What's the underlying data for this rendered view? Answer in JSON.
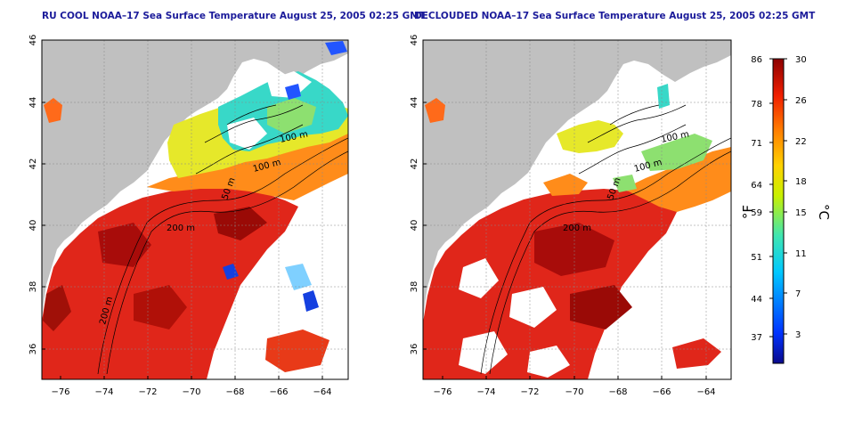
{
  "maps": [
    {
      "id": "left",
      "title": "RU COOL NOAA–17 Sea Surface Temperature August 25, 2005 02:25 GMT",
      "x_ticks": [
        "−76",
        "−74",
        "−72",
        "−70",
        "−68",
        "−66",
        "−64"
      ],
      "y_ticks": [
        "46",
        "44",
        "42",
        "40",
        "38",
        "36"
      ],
      "contour_labels": [
        "100 m",
        "100 m",
        "50 m",
        "200 m",
        "200 m"
      ]
    },
    {
      "id": "right",
      "title": "DECLOUDED NOAA–17 Sea Surface Temperature August 25, 2005 02:25 GMT",
      "x_ticks": [
        "−76",
        "−74",
        "−72",
        "−70",
        "−68",
        "−66",
        "−64"
      ],
      "y_ticks": [
        "46",
        "44",
        "42",
        "40",
        "38",
        "36"
      ],
      "contour_labels": [
        "100 m",
        "100 m",
        "50 m",
        "200 m"
      ]
    }
  ],
  "colorbar": {
    "unit_f": "°F",
    "unit_c": "°C",
    "f_ticks": [
      "86",
      "78",
      "71",
      "64",
      "59",
      "51",
      "44",
      "37"
    ],
    "c_ticks": [
      "30",
      "26",
      "22",
      "18",
      "15",
      "11",
      "7",
      "3"
    ]
  },
  "colors": {
    "land": "#c0c0c0",
    "cloud": "#ffffff",
    "title": "#1b1b9a"
  },
  "chart_data": {
    "type": "heatmap",
    "xlim": [
      -77,
      -63
    ],
    "ylim": [
      35,
      46
    ],
    "x_ticks": [
      -76,
      -74,
      -72,
      -70,
      -68,
      -66,
      -64
    ],
    "y_ticks": [
      36,
      38,
      40,
      42,
      44,
      46
    ],
    "colorbar_range_c": [
      0,
      30
    ],
    "colorbar_c_ticks": [
      3,
      7,
      11,
      15,
      18,
      22,
      26,
      30
    ],
    "colorbar_f_ticks": [
      37,
      44,
      51,
      59,
      64,
      71,
      78,
      86
    ]
  }
}
